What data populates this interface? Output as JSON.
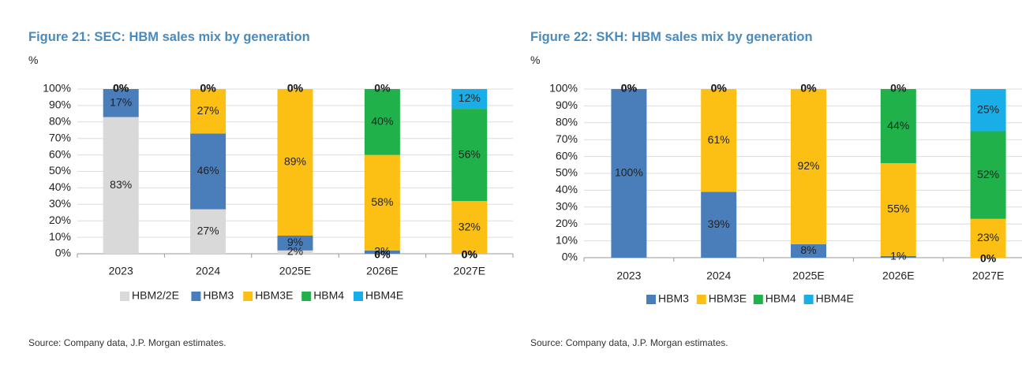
{
  "chart_data": [
    {
      "type": "bar",
      "stacked": true,
      "title": "Figure 21: SEC: HBM sales mix by generation",
      "ylabel": "%",
      "ylim": [
        0,
        100
      ],
      "yticks": [
        "0%",
        "10%",
        "20%",
        "30%",
        "40%",
        "50%",
        "60%",
        "70%",
        "80%",
        "90%",
        "100%"
      ],
      "categories": [
        "2023",
        "2024",
        "2025E",
        "2026E",
        "2027E"
      ],
      "series": [
        {
          "name": "HBM2/2E",
          "color": "#d9d9d9",
          "values": [
            83,
            27,
            2,
            0,
            0
          ],
          "labels": [
            "83%",
            "27%",
            "2%",
            "0%",
            "0%"
          ]
        },
        {
          "name": "HBM3",
          "color": "#4a7ebb",
          "values": [
            17,
            46,
            9,
            2,
            0
          ],
          "labels": [
            "17%",
            "46%",
            "9%",
            "2%",
            "0%"
          ]
        },
        {
          "name": "HBM3E",
          "color": "#fcc015",
          "values": [
            0,
            27,
            89,
            58,
            32
          ],
          "labels": [
            "0%",
            "27%",
            "89%",
            "58%",
            "32%"
          ]
        },
        {
          "name": "HBM4",
          "color": "#21b14b",
          "values": [
            0,
            0,
            0,
            40,
            56
          ],
          "labels": [
            "0%",
            "0%",
            "0%",
            "40%",
            "56%"
          ]
        },
        {
          "name": "HBM4E",
          "color": "#19aee8",
          "values": [
            0,
            0,
            0,
            0,
            12
          ],
          "labels": [
            "0%",
            "0%",
            "0%",
            "0%",
            "12%"
          ]
        }
      ],
      "legend": "bottom",
      "source": "Source: Company data, J.P. Morgan estimates."
    },
    {
      "type": "bar",
      "stacked": true,
      "title": "Figure 22: SKH: HBM sales mix by generation",
      "ylabel": "%",
      "ylim": [
        0,
        100
      ],
      "yticks": [
        "0%",
        "10%",
        "20%",
        "30%",
        "40%",
        "50%",
        "60%",
        "70%",
        "80%",
        "90%",
        "100%"
      ],
      "categories": [
        "2023",
        "2024",
        "2025E",
        "2026E",
        "2027E"
      ],
      "series": [
        {
          "name": "HBM3",
          "color": "#4a7ebb",
          "values": [
            100,
            39,
            8,
            1,
            0
          ],
          "labels": [
            "100%",
            "39%",
            "8%",
            "1%",
            "0%"
          ]
        },
        {
          "name": "HBM3E",
          "color": "#fcc015",
          "values": [
            0,
            61,
            92,
            55,
            23
          ],
          "labels": [
            "0%",
            "61%",
            "92%",
            "55%",
            "23%"
          ]
        },
        {
          "name": "HBM4",
          "color": "#21b14b",
          "values": [
            0,
            0,
            0,
            44,
            52
          ],
          "labels": [
            "0%",
            "0%",
            "0%",
            "44%",
            "52%"
          ]
        },
        {
          "name": "HBM4E",
          "color": "#19aee8",
          "values": [
            0,
            0,
            0,
            0,
            25
          ],
          "labels": [
            "0%",
            "0%",
            "0%",
            "0%",
            "25%"
          ]
        }
      ],
      "legend": "bottom",
      "source": "Source: Company data, J.P. Morgan estimates."
    }
  ]
}
